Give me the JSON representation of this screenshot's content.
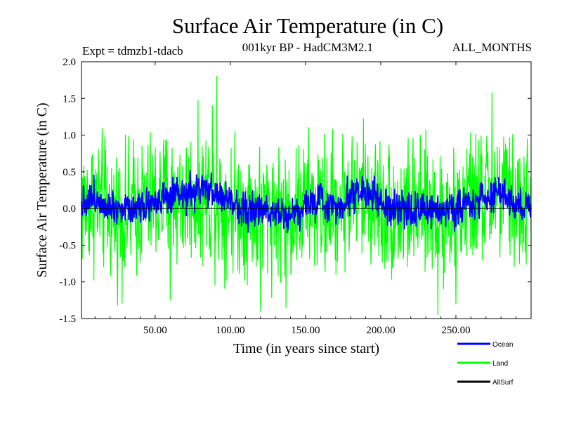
{
  "chart_data": {
    "type": "line",
    "title": "Surface Air Temperature (in C)",
    "subtitle": "001kyr BP - HadCM3M2.1",
    "experiment_label": "Expt = tdmzb1-tdacb",
    "months_label": "ALL_MONTHS",
    "xlabel": "Time (in years since start)",
    "ylabel": "Surface Air Temperature (in C)",
    "xlim": [
      1,
      300
    ],
    "ylim": [
      -1.5,
      2.0
    ],
    "x_ticks": [
      50,
      100,
      150,
      200,
      250
    ],
    "x_tick_labels": [
      "50.00",
      "100.00",
      "150.00",
      "200.00",
      "250.00"
    ],
    "y_ticks": [
      -1.5,
      -1.0,
      -0.5,
      0.0,
      0.5,
      1.0,
      1.5,
      2.0
    ],
    "y_tick_labels": [
      "-1.5",
      "-1.0",
      "-0.5",
      "0.0",
      "0.5",
      "1.0",
      "1.5",
      "2.0"
    ],
    "zero_line": true,
    "legend_position": "bottom-right",
    "series": [
      {
        "name": "Land",
        "color": "#00ff00",
        "samples_per_year": 4,
        "noise_amplitude": 0.42,
        "anchors": [
          [
            1,
            0.05
          ],
          [
            10,
            0.1
          ],
          [
            20,
            -0.05
          ],
          [
            30,
            -0.1
          ],
          [
            40,
            0.05
          ],
          [
            50,
            0.1
          ],
          [
            60,
            0.15
          ],
          [
            70,
            0.12
          ],
          [
            80,
            0.2
          ],
          [
            90,
            0.15
          ],
          [
            100,
            0.05
          ],
          [
            110,
            0.0
          ],
          [
            120,
            -0.05
          ],
          [
            130,
            0.0
          ],
          [
            140,
            -0.1
          ],
          [
            150,
            0.05
          ],
          [
            160,
            0.0
          ],
          [
            170,
            0.05
          ],
          [
            180,
            0.15
          ],
          [
            190,
            0.2
          ],
          [
            200,
            0.05
          ],
          [
            210,
            -0.05
          ],
          [
            220,
            0.0
          ],
          [
            230,
            -0.05
          ],
          [
            240,
            0.0
          ],
          [
            250,
            -0.05
          ],
          [
            260,
            0.1
          ],
          [
            270,
            0.15
          ],
          [
            280,
            0.2
          ],
          [
            290,
            0.05
          ],
          [
            300,
            0.0
          ]
        ],
        "extremes": [
          [
            91,
            1.8
          ],
          [
            274,
            1.58
          ],
          [
            88,
            1.4
          ],
          [
            120,
            -1.4
          ],
          [
            137,
            -1.35
          ],
          [
            238,
            -1.45
          ],
          [
            250,
            -1.3
          ],
          [
            60,
            -1.25
          ]
        ]
      },
      {
        "name": "Ocean",
        "color": "#0000ff",
        "samples_per_year": 4,
        "noise_amplitude": 0.11,
        "anchors": [
          [
            1,
            0.1
          ],
          [
            10,
            0.15
          ],
          [
            20,
            0.05
          ],
          [
            30,
            0.0
          ],
          [
            40,
            0.05
          ],
          [
            50,
            0.1
          ],
          [
            60,
            0.12
          ],
          [
            70,
            0.18
          ],
          [
            80,
            0.25
          ],
          [
            90,
            0.2
          ],
          [
            100,
            0.1
          ],
          [
            110,
            0.0
          ],
          [
            120,
            -0.05
          ],
          [
            130,
            0.0
          ],
          [
            140,
            -0.1
          ],
          [
            150,
            0.05
          ],
          [
            160,
            0.1
          ],
          [
            170,
            0.0
          ],
          [
            180,
            0.2
          ],
          [
            190,
            0.25
          ],
          [
            200,
            0.05
          ],
          [
            210,
            -0.05
          ],
          [
            220,
            0.0
          ],
          [
            230,
            -0.05
          ],
          [
            240,
            0.0
          ],
          [
            250,
            0.0
          ],
          [
            260,
            0.1
          ],
          [
            270,
            0.15
          ],
          [
            280,
            0.2
          ],
          [
            290,
            0.05
          ],
          [
            300,
            0.0
          ]
        ],
        "extremes": []
      },
      {
        "name": "AllSurf",
        "color": "#000000",
        "samples_per_year": 0,
        "noise_amplitude": 0,
        "anchors": [],
        "extremes": []
      }
    ]
  }
}
